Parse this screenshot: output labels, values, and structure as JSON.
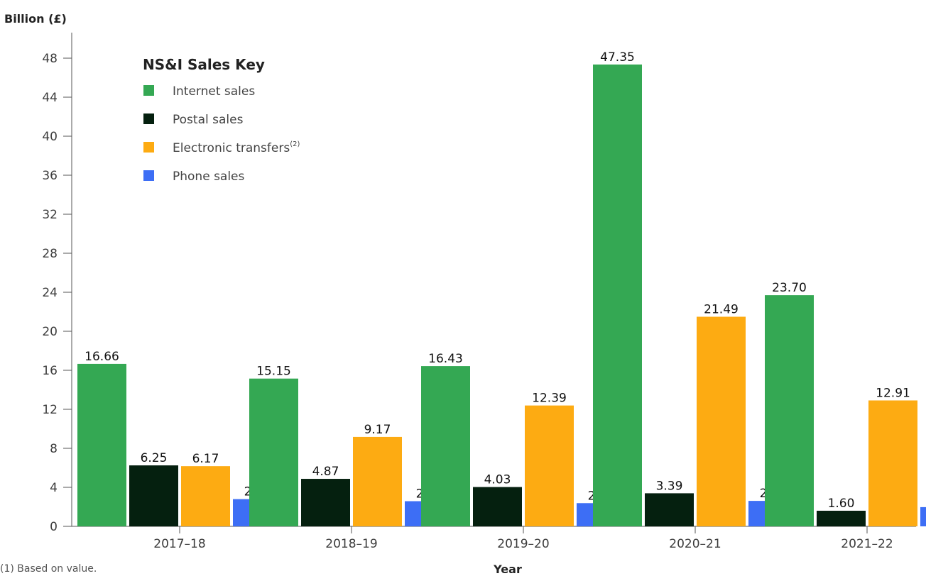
{
  "chart_data": {
    "type": "bar",
    "ylabel": "Billion (£)",
    "xlabel": "Year",
    "ylim": [
      0,
      48
    ],
    "yticks": [
      0,
      4,
      8,
      12,
      16,
      20,
      24,
      28,
      32,
      36,
      40,
      44,
      48
    ],
    "categories": [
      "2017–18",
      "2018–19",
      "2019–20",
      "2020–21",
      "2021–22"
    ],
    "legend": {
      "title": "NS&I Sales Key",
      "placement": "top-left",
      "note_marker": "(2)"
    },
    "series": [
      {
        "name": "Internet sales",
        "color": "#34a853",
        "values": [
          16.66,
          15.15,
          16.43,
          47.35,
          23.7
        ],
        "labels": [
          "16.66",
          "15.15",
          "16.43",
          "47.35",
          "23.70"
        ]
      },
      {
        "name": "Postal sales",
        "color": "#05200f",
        "values": [
          6.25,
          4.87,
          4.03,
          3.39,
          1.6
        ],
        "labels": [
          "6.25",
          "4.87",
          "4.03",
          "3.39",
          "1.60"
        ]
      },
      {
        "name": "Electronic transfers",
        "color": "#fdab12",
        "values": [
          6.17,
          9.17,
          12.39,
          21.49,
          12.91
        ],
        "labels": [
          "6.17",
          "9.17",
          "12.39",
          "21.49",
          "12.91"
        ]
      },
      {
        "name": "Phone sales",
        "color": "#3d6ef5",
        "values": [
          2.79,
          2.58,
          2.38,
          2.61,
          1.97
        ],
        "labels": [
          "2.79",
          "2.58",
          "2.38",
          "2.61",
          "1.97"
        ]
      }
    ],
    "footnote": "(1) Based on value."
  }
}
